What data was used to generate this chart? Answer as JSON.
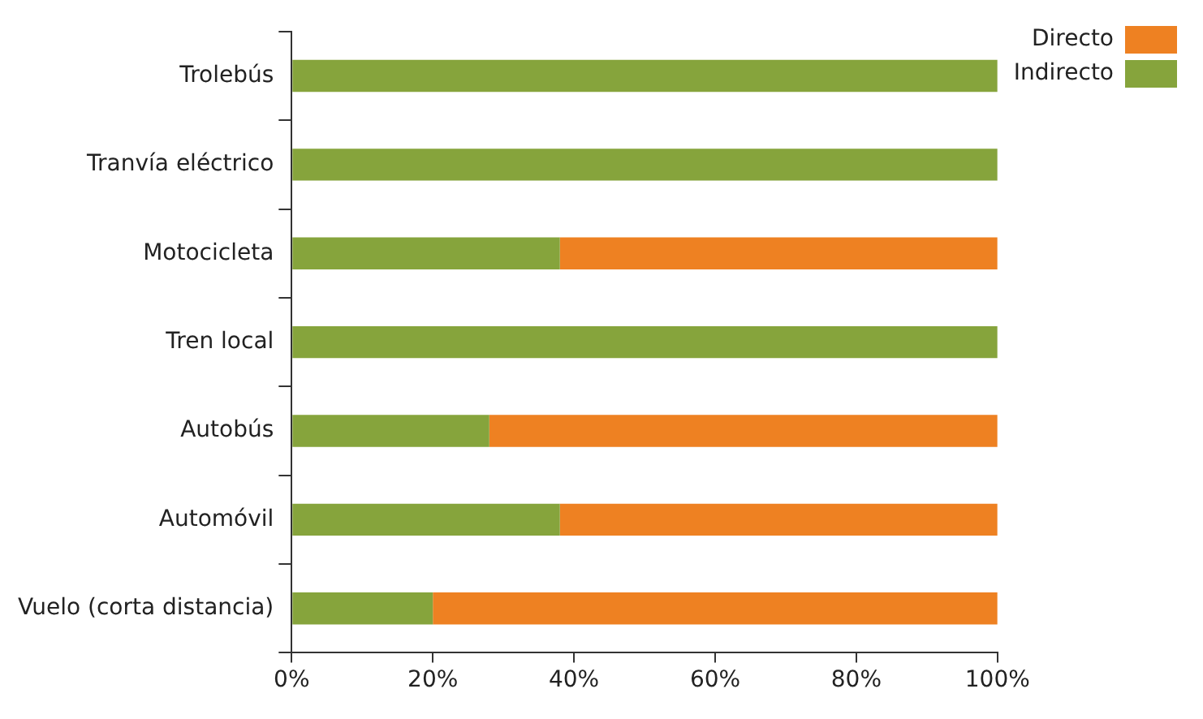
{
  "chart_data": {
    "type": "bar",
    "orientation": "horizontal",
    "stacked": true,
    "categories": [
      "Trolebús",
      "Tranvía eléctrico",
      "Motocicleta",
      "Tren local",
      "Autobús",
      "Automóvil",
      "Vuelo (corta distancia)"
    ],
    "series": [
      {
        "name": "Indirecto",
        "color": "#86a43c",
        "values": [
          100,
          100,
          38,
          100,
          28,
          38,
          20
        ]
      },
      {
        "name": "Directo",
        "color": "#ee8122",
        "values": [
          0,
          0,
          62,
          0,
          72,
          62,
          80
        ]
      }
    ],
    "xlim": [
      0,
      100
    ],
    "xticks": [
      {
        "value": 0,
        "label": "0%"
      },
      {
        "value": 20,
        "label": "20%"
      },
      {
        "value": 40,
        "label": "40%"
      },
      {
        "value": 60,
        "label": "60%"
      },
      {
        "value": 80,
        "label": "80%"
      },
      {
        "value": 100,
        "label": "100%"
      }
    ],
    "grid": false,
    "legend": "top right"
  }
}
